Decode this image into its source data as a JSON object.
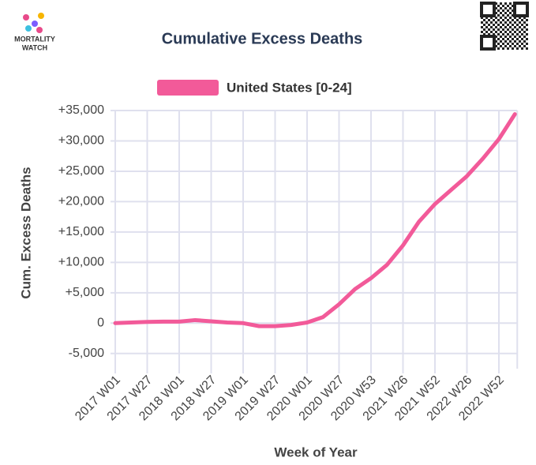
{
  "logo": {
    "line1": "MORTALITY",
    "line2": "WATCH"
  },
  "chart_data": {
    "type": "line",
    "title": "Cumulative Excess Deaths",
    "ylabel": "Cum. Excess Deaths",
    "xlabel": "Week of Year",
    "categories": [
      "2017 W01",
      null,
      "2017 W27",
      null,
      "2018 W01",
      null,
      "2018 W27",
      null,
      "2019 W01",
      null,
      "2019 W27",
      null,
      "2020 W01",
      null,
      "2020 W27",
      null,
      "2020 W53",
      null,
      "2021 W26",
      null,
      "2021 W52",
      null,
      "2022 W26",
      null,
      "2022 W52",
      null
    ],
    "series": [
      {
        "name": "United States [0-24]",
        "color": "#f25a99",
        "values": [
          0,
          100,
          200,
          250,
          250,
          500,
          300,
          100,
          0,
          -500,
          -500,
          -300,
          100,
          1000,
          3100,
          5600,
          7400,
          9600,
          12800,
          16700,
          19600,
          21900,
          24200,
          27100,
          30300,
          34400
        ]
      }
    ],
    "ylim": [
      -7500,
      35000
    ],
    "yticks": [
      {
        "value": -5000,
        "label": "-5,000"
      },
      0,
      {
        "value": 5000,
        "label": "+5,000"
      },
      {
        "value": 10000,
        "label": "+10,000"
      },
      {
        "value": 15000,
        "label": "+15,000"
      },
      {
        "value": 20000,
        "label": "+20,000"
      },
      {
        "value": 25000,
        "label": "+25,000"
      },
      {
        "value": 30000,
        "label": "+30,000"
      },
      {
        "value": 35000,
        "label": "+35,000"
      }
    ],
    "grid": true,
    "legend": "top"
  }
}
